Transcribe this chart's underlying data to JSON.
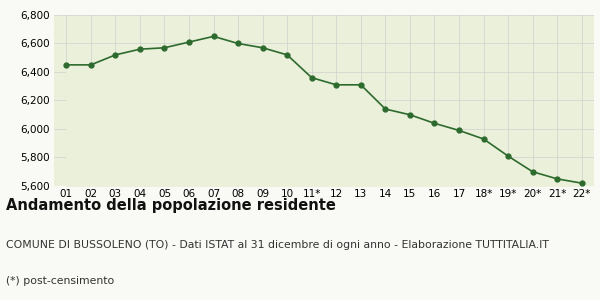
{
  "x_labels": [
    "01",
    "02",
    "03",
    "04",
    "05",
    "06",
    "07",
    "08",
    "09",
    "10",
    "11*",
    "12",
    "13",
    "14",
    "15",
    "16",
    "17",
    "18*",
    "19*",
    "20*",
    "21*",
    "22*"
  ],
  "y_values": [
    6450,
    6450,
    6520,
    6560,
    6570,
    6610,
    6650,
    6600,
    6570,
    6520,
    6360,
    6310,
    6310,
    6140,
    6100,
    6040,
    5990,
    5930,
    5810,
    5700,
    5650,
    5620
  ],
  "ylim_min": 5600,
  "ylim_max": 6800,
  "yticks": [
    5600,
    5800,
    6000,
    6200,
    6400,
    6600,
    6800
  ],
  "line_color": "#2d6a2d",
  "fill_color": "#eaf0da",
  "marker_color": "#2d6a2d",
  "bg_color": "#f9f9f6",
  "grid_color": "#d0d0d0",
  "title": "Andamento della popolazione residente",
  "subtitle": "COMUNE DI BUSSOLENO (TO) - Dati ISTAT al 31 dicembre di ogni anno - Elaborazione TUTTITALIA.IT",
  "footnote": "(*) post-censimento",
  "title_fontsize": 10.5,
  "subtitle_fontsize": 7.8,
  "footnote_fontsize": 7.8,
  "tick_fontsize": 7.5
}
